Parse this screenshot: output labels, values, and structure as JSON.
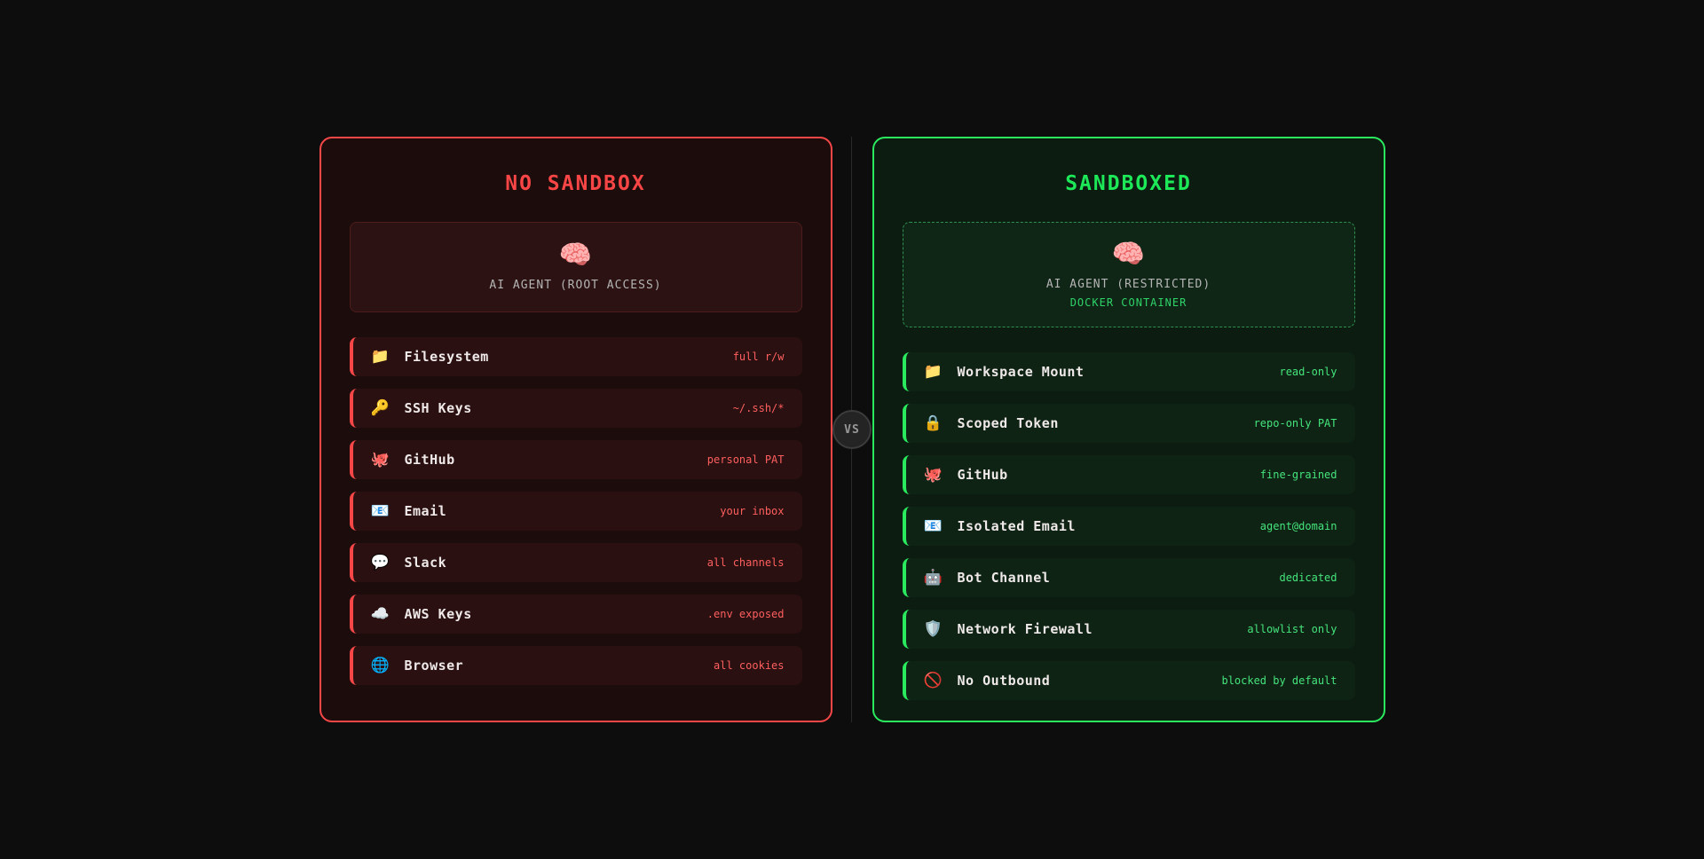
{
  "theme": {
    "danger_accent": "#f54747",
    "danger_value": "#ff5f5f",
    "safe_accent": "#2be95f",
    "safe_value": "#45e47c",
    "page_bg": "#0d0d0d"
  },
  "vs_badge": {
    "label": "VS"
  },
  "panels": [
    {
      "id": "no-sandbox",
      "title": "NO SANDBOX",
      "agent": {
        "icon": "🧠",
        "label": "AI AGENT (ROOT ACCESS)",
        "sublabel": ""
      },
      "items": [
        {
          "icon": "📁",
          "icon_name": "folder-icon",
          "label": "Filesystem",
          "value": "full r/w"
        },
        {
          "icon": "🔑",
          "icon_name": "key-icon",
          "label": "SSH Keys",
          "value": "~/.ssh/*"
        },
        {
          "icon": "🐙",
          "icon_name": "octopus-icon",
          "label": "GitHub",
          "value": "personal PAT"
        },
        {
          "icon": "📧",
          "icon_name": "email-icon",
          "label": "Email",
          "value": "your inbox"
        },
        {
          "icon": "💬",
          "icon_name": "speech-balloon-icon",
          "label": "Slack",
          "value": "all channels"
        },
        {
          "icon": "☁️",
          "icon_name": "cloud-icon",
          "label": "AWS Keys",
          "value": ".env exposed"
        },
        {
          "icon": "🌐",
          "icon_name": "globe-icon",
          "label": "Browser",
          "value": "all cookies"
        }
      ]
    },
    {
      "id": "sandboxed",
      "title": "SANDBOXED",
      "agent": {
        "icon": "🧠",
        "label": "AI AGENT (RESTRICTED)",
        "sublabel": "DOCKER CONTAINER"
      },
      "items": [
        {
          "icon": "📁",
          "icon_name": "folder-icon",
          "label": "Workspace Mount",
          "value": "read-only"
        },
        {
          "icon": "🔒",
          "icon_name": "lock-icon",
          "label": "Scoped Token",
          "value": "repo-only PAT"
        },
        {
          "icon": "🐙",
          "icon_name": "octopus-icon",
          "label": "GitHub",
          "value": "fine-grained"
        },
        {
          "icon": "📧",
          "icon_name": "email-icon",
          "label": "Isolated Email",
          "value": "agent@domain"
        },
        {
          "icon": "🤖",
          "icon_name": "robot-icon",
          "label": "Bot Channel",
          "value": "dedicated"
        },
        {
          "icon": "🛡️",
          "icon_name": "shield-icon",
          "label": "Network Firewall",
          "value": "allowlist only"
        },
        {
          "icon": "🚫",
          "icon_name": "no-entry-icon",
          "label": "No Outbound",
          "value": "blocked by default"
        }
      ]
    }
  ]
}
